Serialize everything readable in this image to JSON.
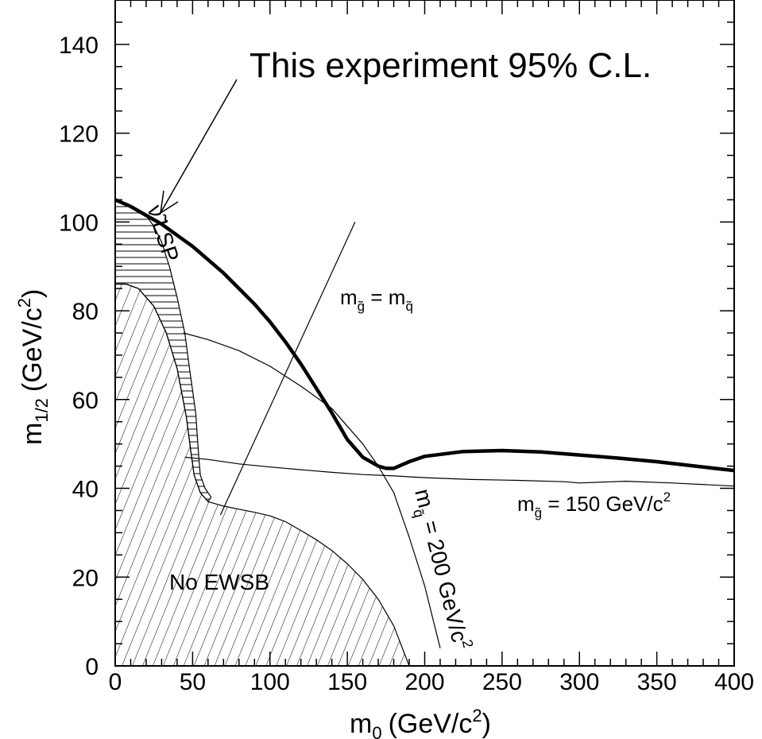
{
  "chart_data": {
    "type": "line",
    "xlabel": {
      "main": "m",
      "sub": "0",
      "unit": "(GeV/c",
      "sup": "2",
      "close": ")"
    },
    "ylabel": {
      "main": "m",
      "sub": "1/2",
      "unit": "(GeV/c",
      "sup": "2",
      "close": ")"
    },
    "xlim": [
      0,
      400
    ],
    "ylim": [
      0,
      150
    ],
    "xticks": [
      0,
      50,
      100,
      150,
      200,
      250,
      300,
      350,
      400
    ],
    "yticks": [
      0,
      20,
      40,
      60,
      80,
      100,
      120,
      140
    ],
    "grid": false,
    "series": [
      {
        "name": "This experiment 95% C.L.",
        "style": "thick",
        "points": [
          [
            0,
            105
          ],
          [
            10,
            103.5
          ],
          [
            20,
            101.5
          ],
          [
            30,
            99.5
          ],
          [
            40,
            97
          ],
          [
            50,
            94.5
          ],
          [
            60,
            91.5
          ],
          [
            70,
            88.5
          ],
          [
            80,
            85
          ],
          [
            90,
            81.5
          ],
          [
            100,
            77.5
          ],
          [
            110,
            73
          ],
          [
            120,
            68
          ],
          [
            130,
            62.5
          ],
          [
            140,
            57
          ],
          [
            150,
            51
          ],
          [
            160,
            47
          ],
          [
            170,
            45
          ],
          [
            175,
            44.5
          ],
          [
            180,
            44.5
          ],
          [
            190,
            46
          ],
          [
            200,
            47.2
          ],
          [
            225,
            48.3
          ],
          [
            250,
            48.5
          ],
          [
            275,
            48.2
          ],
          [
            300,
            47.5
          ],
          [
            325,
            46.8
          ],
          [
            350,
            46
          ],
          [
            375,
            45
          ],
          [
            400,
            44
          ]
        ]
      },
      {
        "name": "m_gluino = 150 GeV/c2",
        "style": "thin",
        "points": [
          [
            45,
            47
          ],
          [
            60,
            46.5
          ],
          [
            80,
            45.5
          ],
          [
            100,
            44.8
          ],
          [
            120,
            44.2
          ],
          [
            140,
            43.6
          ],
          [
            160,
            43.1
          ],
          [
            180,
            42.8
          ],
          [
            200,
            42.4
          ],
          [
            230,
            42
          ],
          [
            260,
            41.8
          ],
          [
            290,
            41.5
          ],
          [
            300,
            41.2
          ],
          [
            330,
            41.6
          ],
          [
            360,
            41.2
          ],
          [
            400,
            40.5
          ]
        ]
      },
      {
        "name": "m_squark = 200 GeV/c2",
        "style": "thin",
        "points": [
          [
            44,
            75
          ],
          [
            60,
            73.5
          ],
          [
            80,
            71
          ],
          [
            100,
            67.5
          ],
          [
            120,
            63
          ],
          [
            140,
            58
          ],
          [
            150,
            54
          ],
          [
            160,
            50
          ],
          [
            170,
            45
          ],
          [
            180,
            39
          ],
          [
            190,
            29
          ],
          [
            200,
            18
          ],
          [
            210,
            4
          ]
        ]
      },
      {
        "name": "m_gluino = m_squark",
        "style": "thin",
        "points": [
          [
            68,
            34
          ],
          [
            155,
            100
          ]
        ]
      },
      {
        "name": "sneutrino LSP boundary",
        "style": "thin",
        "points": [
          [
            0,
            105
          ],
          [
            10,
            103.5
          ],
          [
            20,
            101.5
          ],
          [
            25,
            99
          ],
          [
            30,
            95.5
          ],
          [
            35,
            90
          ],
          [
            40,
            83
          ],
          [
            45,
            75
          ],
          [
            48,
            67
          ],
          [
            52,
            57
          ],
          [
            53,
            52
          ],
          [
            54,
            47
          ],
          [
            55,
            43
          ],
          [
            58,
            40
          ],
          [
            62,
            38
          ],
          [
            60,
            37
          ],
          [
            55,
            39
          ],
          [
            51,
            43
          ],
          [
            49,
            48
          ],
          [
            46,
            56
          ],
          [
            40,
            67
          ],
          [
            33,
            75
          ],
          [
            25,
            81
          ],
          [
            15,
            85
          ],
          [
            7,
            86
          ],
          [
            0,
            86
          ]
        ]
      },
      {
        "name": "No EWSB boundary",
        "style": "thin",
        "points": [
          [
            0,
            86
          ],
          [
            7,
            86
          ],
          [
            15,
            85
          ],
          [
            25,
            81
          ],
          [
            33,
            75
          ],
          [
            40,
            67
          ],
          [
            46,
            56
          ],
          [
            49,
            48
          ],
          [
            51,
            43
          ],
          [
            55,
            39
          ],
          [
            60,
            37
          ],
          [
            70,
            36
          ],
          [
            80,
            35.3
          ],
          [
            90,
            34.6
          ],
          [
            100,
            33.8
          ],
          [
            110,
            32.5
          ],
          [
            120,
            30.5
          ],
          [
            130,
            28.4
          ],
          [
            140,
            26
          ],
          [
            150,
            23
          ],
          [
            160,
            19.5
          ],
          [
            170,
            15
          ],
          [
            180,
            9
          ],
          [
            190,
            0
          ]
        ]
      }
    ],
    "annotations": [
      {
        "text": "This experiment 95% C.L."
      },
      {
        "text": "No EWSB"
      },
      {
        "text": "LSP",
        "prefix_symbol": "ν̃"
      },
      {
        "m": "m",
        "sub1": "g̃",
        "eq": " = m",
        "sub2": "q̃"
      },
      {
        "m": "m",
        "sub1": "g̃",
        "rest": " = 150 GeV/c",
        "sup": "2"
      },
      {
        "m": "m",
        "sub1": "q̃",
        "rest": " = 200 GeV/c",
        "sup": "2"
      }
    ]
  }
}
